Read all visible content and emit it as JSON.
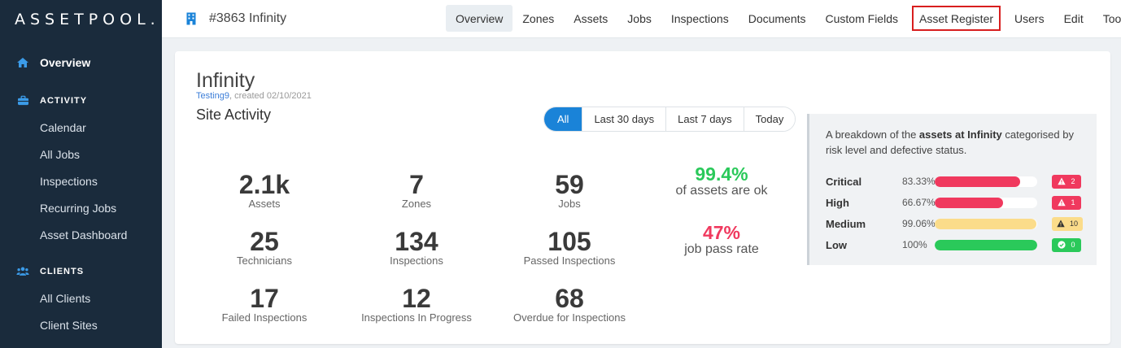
{
  "app": {
    "logo": "ASSETPOOL."
  },
  "sidebar": {
    "overview": "Overview",
    "activity_header": "ACTIVITY",
    "activity_items": [
      "Calendar",
      "All Jobs",
      "Inspections",
      "Recurring Jobs",
      "Asset Dashboard"
    ],
    "clients_header": "CLIENTS",
    "clients_items": [
      "All Clients",
      "Client Sites"
    ]
  },
  "topbar": {
    "site_title": "#3863 Infinity",
    "nav": [
      "Overview",
      "Zones",
      "Assets",
      "Jobs",
      "Inspections",
      "Documents",
      "Custom Fields",
      "Asset Register",
      "Users",
      "Edit",
      "Tools"
    ]
  },
  "card": {
    "title": "Infinity",
    "created_by": "Testing9",
    "created_text": ", created 02/10/2021",
    "section_title": "Site Activity",
    "filters": [
      "All",
      "Last 30 days",
      "Last 7 days",
      "Today"
    ]
  },
  "stats": {
    "assets": {
      "value": "2.1k",
      "label": "Assets"
    },
    "zones": {
      "value": "7",
      "label": "Zones"
    },
    "jobs": {
      "value": "59",
      "label": "Jobs"
    },
    "technicians": {
      "value": "25",
      "label": "Technicians"
    },
    "inspections": {
      "value": "134",
      "label": "Inspections"
    },
    "passed": {
      "value": "105",
      "label": "Passed Inspections"
    },
    "failed": {
      "value": "17",
      "label": "Failed Inspections"
    },
    "in_progress": {
      "value": "12",
      "label": "Inspections In Progress"
    },
    "overdue": {
      "value": "68",
      "label": "Overdue for Inspections"
    },
    "assets_ok": {
      "value": "99.4%",
      "label": "of assets are ok"
    },
    "pass_rate": {
      "value": "47%",
      "label": "job pass rate"
    }
  },
  "risk": {
    "desc_pre": "A breakdown of the ",
    "desc_bold": "assets at Infinity",
    "desc_post": " categorised by risk level and defective status.",
    "rows": [
      {
        "name": "Critical",
        "pct": "83.33%",
        "fill": 0.8333,
        "color": "#f0395e",
        "badge": "2",
        "badge_bg": "#f0395e",
        "badge_fg": "#ffffff",
        "badge_icon": "warning-icon"
      },
      {
        "name": "High",
        "pct": "66.67%",
        "fill": 0.6667,
        "color": "#f0395e",
        "badge": "1",
        "badge_bg": "#f0395e",
        "badge_fg": "#ffffff",
        "badge_icon": "warning-icon"
      },
      {
        "name": "Medium",
        "pct": "99.06%",
        "fill": 0.9906,
        "color": "#fbdc8a",
        "badge": "10",
        "badge_bg": "#fbdc8a",
        "badge_fg": "#333333",
        "badge_icon": "warning-icon"
      },
      {
        "name": "Low",
        "pct": "100%",
        "fill": 1.0,
        "color": "#2ac95a",
        "badge": "0",
        "badge_bg": "#2ac95a",
        "badge_fg": "#ffffff",
        "badge_icon": "check-circle-icon"
      }
    ]
  },
  "colors": {
    "ok_green": "#2ac95a",
    "rate_red": "#f0395e",
    "accent_blue": "#1a83d8"
  }
}
